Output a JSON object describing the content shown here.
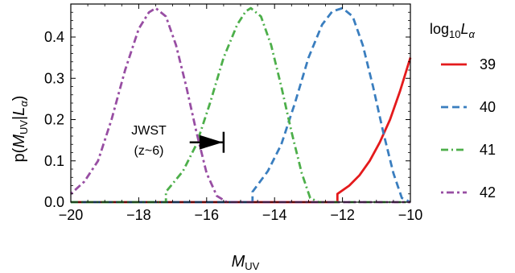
{
  "chart_data": {
    "type": "line",
    "xlabel_main": "M",
    "xlabel_sub": "UV",
    "ylabel_parts": {
      "pre": "p(",
      "m": "M",
      "msub": "UV",
      "mid": "|",
      "l": "L",
      "lsub": "α",
      "post": ")"
    },
    "xlim": [
      -20,
      -10
    ],
    "ylim": [
      0,
      0.48
    ],
    "xticks": [
      -20,
      -18,
      -16,
      -14,
      -12,
      -10
    ],
    "xtick_labels": [
      "−20",
      "−18",
      "−16",
      "−14",
      "−12",
      "−10"
    ],
    "yticks": [
      0.0,
      0.1,
      0.2,
      0.3,
      0.4
    ],
    "ytick_labels": [
      "0.0",
      "0.1",
      "0.2",
      "0.3",
      "0.4"
    ],
    "legend": {
      "title_main": "log",
      "title_sub": "10",
      "title_l": "L",
      "title_lsub": "α",
      "placement": "right"
    },
    "annotation": {
      "line1": "JWST",
      "line2": "(z~6)",
      "arrow_from_x": -16.5,
      "arrow_to_x": -15.5,
      "y": 0.145
    },
    "series": [
      {
        "name": "39",
        "color": "#e41a1c",
        "dash": "solid",
        "points": [
          [
            -20,
            0.0
          ],
          [
            -12.15,
            0.0
          ],
          [
            -12.15,
            0.02
          ],
          [
            -11.8,
            0.04
          ],
          [
            -11.5,
            0.065
          ],
          [
            -11.2,
            0.1
          ],
          [
            -10.9,
            0.145
          ],
          [
            -10.6,
            0.2
          ],
          [
            -10.3,
            0.27
          ],
          [
            -10.0,
            0.35
          ]
        ]
      },
      {
        "name": "40",
        "color": "#3a7ebf",
        "dash": "dashed",
        "points": [
          [
            -20,
            0.0
          ],
          [
            -14.65,
            0.0
          ],
          [
            -14.65,
            0.025
          ],
          [
            -14.2,
            0.075
          ],
          [
            -13.8,
            0.14
          ],
          [
            -13.4,
            0.24
          ],
          [
            -13.0,
            0.35
          ],
          [
            -12.6,
            0.43
          ],
          [
            -12.3,
            0.462
          ],
          [
            -12.0,
            0.47
          ],
          [
            -11.7,
            0.45
          ],
          [
            -11.4,
            0.38
          ],
          [
            -11.1,
            0.28
          ],
          [
            -10.8,
            0.17
          ],
          [
            -10.5,
            0.07
          ],
          [
            -10.25,
            0.01
          ],
          [
            -10.0,
            0.0
          ]
        ]
      },
      {
        "name": "41",
        "color": "#4daf4a",
        "dash": "dashdot",
        "points": [
          [
            -20,
            0.0
          ],
          [
            -17.2,
            0.0
          ],
          [
            -17.2,
            0.025
          ],
          [
            -16.7,
            0.075
          ],
          [
            -16.3,
            0.14
          ],
          [
            -15.9,
            0.24
          ],
          [
            -15.5,
            0.35
          ],
          [
            -15.1,
            0.43
          ],
          [
            -14.85,
            0.462
          ],
          [
            -14.7,
            0.47
          ],
          [
            -14.4,
            0.45
          ],
          [
            -14.1,
            0.38
          ],
          [
            -13.8,
            0.28
          ],
          [
            -13.5,
            0.17
          ],
          [
            -13.2,
            0.07
          ],
          [
            -12.95,
            0.01
          ],
          [
            -12.7,
            0.0
          ],
          [
            -10,
            0.0
          ]
        ]
      },
      {
        "name": "42",
        "color": "#984ea3",
        "dash": "dotdash",
        "points": [
          [
            -20,
            0.02
          ],
          [
            -19.6,
            0.05
          ],
          [
            -19.2,
            0.1
          ],
          [
            -18.8,
            0.2
          ],
          [
            -18.4,
            0.32
          ],
          [
            -18.0,
            0.42
          ],
          [
            -17.7,
            0.46
          ],
          [
            -17.5,
            0.47
          ],
          [
            -17.2,
            0.45
          ],
          [
            -16.9,
            0.38
          ],
          [
            -16.6,
            0.28
          ],
          [
            -16.3,
            0.17
          ],
          [
            -16.0,
            0.07
          ],
          [
            -15.7,
            0.015
          ],
          [
            -15.4,
            0.0
          ],
          [
            -10,
            0.0
          ]
        ]
      }
    ]
  }
}
